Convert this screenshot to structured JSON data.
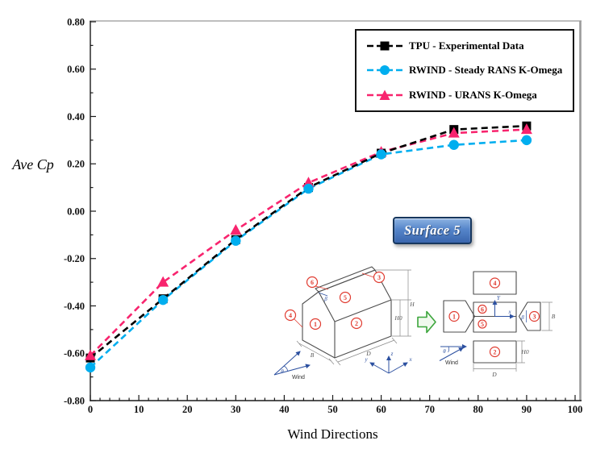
{
  "chart_data": {
    "type": "line",
    "title": "",
    "x": [
      0,
      15,
      30,
      45,
      60,
      75,
      90
    ],
    "series": [
      {
        "name": "TPU - Experimental Data",
        "marker": "square",
        "color": "#000000",
        "values": [
          -0.62,
          -0.37,
          -0.12,
          0.1,
          0.245,
          0.345,
          0.36
        ]
      },
      {
        "name": "RWIND - Steady RANS K-Omega",
        "marker": "circle",
        "color": "#00AEEF",
        "values": [
          -0.66,
          -0.375,
          -0.125,
          0.095,
          0.24,
          0.28,
          0.3
        ]
      },
      {
        "name": "RWIND - URANS K-Omega",
        "marker": "triangle",
        "color": "#F8246E",
        "values": [
          -0.61,
          -0.3,
          -0.08,
          0.12,
          0.25,
          0.33,
          0.345
        ]
      }
    ],
    "xlabel": "Wind Directions",
    "ylabel": "Ave Cp",
    "xlim": [
      0,
      100
    ],
    "ylim": [
      -0.8,
      0.8
    ],
    "x_major": 10,
    "x_minor": 2,
    "y_major": 0.2,
    "y_minor": 0.1,
    "line_style": "dashed",
    "grid": false,
    "legend_position": "top-right"
  },
  "badge": {
    "label": "Surface 5",
    "fill_top": "#8db3e2",
    "fill_bottom": "#3a66ad",
    "border": "#17375e"
  },
  "inset": {
    "house_labels": {
      "s1": "1",
      "s2": "2",
      "s3": "3",
      "s4": "4",
      "s5": "5",
      "s6": "6",
      "beta": "β",
      "b": "B",
      "d": "D",
      "h0": "H0",
      "h": "H",
      "theta": "θ",
      "wind": "Wind",
      "ax_x": "x",
      "ax_y": "y",
      "ax_z": "z"
    },
    "flat_labels": {
      "s1": "1",
      "s2": "2",
      "s3": "3",
      "s4": "4",
      "s5": "5",
      "s6": "6",
      "beta": "β",
      "b": "B",
      "d": "D",
      "h0": "H0",
      "theta": "θ",
      "wind": "Wind",
      "ax_x": "x",
      "ax_y": "Y"
    },
    "colors": {
      "outline": "#4d4d4d",
      "callout_red": "#e03c31",
      "arrow_blue": "#2c50a0",
      "arrow_green": "#3ba53b"
    }
  }
}
